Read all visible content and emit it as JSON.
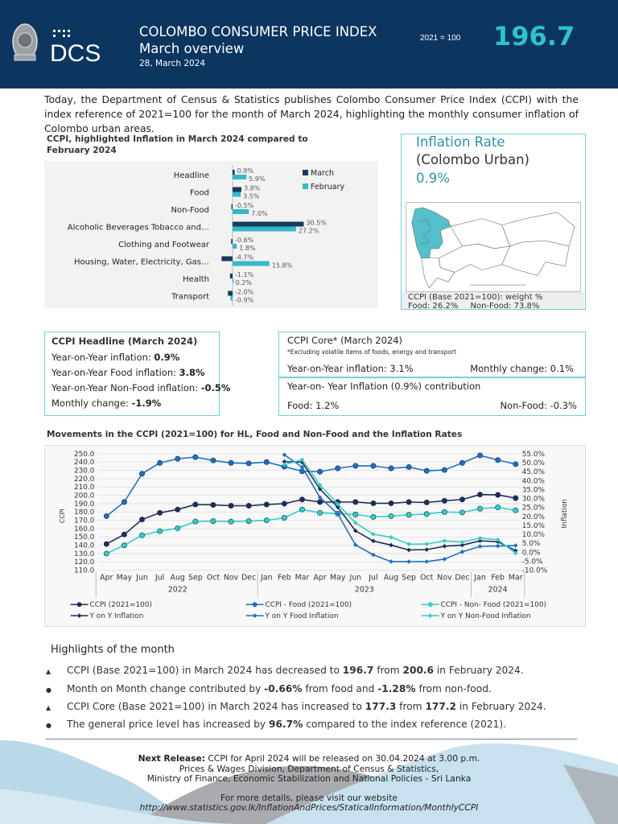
{
  "header": {
    "logo_text": "DCS",
    "title": "COLOMBO CONSUMER PRICE INDEX",
    "subtitle": "March overview",
    "date": "28, March 2024",
    "base": "2021 = 100",
    "index_value": "196.7"
  },
  "intro": "Today, the Department of Census & Statistics publishes Colombo Consumer Price Index (CCPI) with the index reference of 2021=100 for the month of March 2024, highlighting the monthly consumer inflation of Colombo urban areas.",
  "colors": {
    "navy": "#0c3560",
    "teal": "#2ec3c9",
    "march_bar": "#173b5e",
    "february_bar": "#35b8c8",
    "ccpi": "#1f2d5a",
    "food": "#1f6fc0",
    "nonfood": "#2fcfc8"
  },
  "bar_chart": {
    "title": "CCPI, highlighted Inflation in March 2024 compared to February 2024",
    "type": "bar",
    "categories": [
      "Headline",
      "Food",
      "Non-Food",
      "Alcoholic Beverages Tobacco and…",
      "Clothing and Footwear",
      "Housing, Water, Electricity, Gas…",
      "Health",
      "Transport"
    ],
    "series": [
      {
        "name": "March",
        "values": [
          0.9,
          3.8,
          -0.5,
          30.5,
          -0.6,
          -4.7,
          -1.1,
          -2.0
        ],
        "labels": [
          "0.9%",
          "3.8%",
          "-0.5%",
          "30.5%",
          "-0.6%",
          "-4.7%",
          "-1.1%",
          "-2.0%"
        ]
      },
      {
        "name": "February",
        "values": [
          5.9,
          3.5,
          7.0,
          27.2,
          1.8,
          15.8,
          0.2,
          -0.9
        ],
        "labels": [
          "5.9%",
          "3.5%",
          "7.0%",
          "27.2%",
          "1.8%",
          "15.8%",
          "0.2%",
          "-0.9%"
        ]
      }
    ],
    "legend": "top-right"
  },
  "inflation_box": {
    "title": "Inflation Rate",
    "subtitle": "(Colombo Urban)",
    "value": "0.9%",
    "weight_caption": "CCPI (Base 2021=100): weight %",
    "food_label": "Food:",
    "food_value": "26.2%",
    "nonfood_label": "Non-Food:",
    "nonfood_value": "73.8%"
  },
  "headline_box": {
    "title": "CCPI Headline (March 2024)",
    "lines": [
      {
        "label": "Year-on-Year inflation: ",
        "value": "0.9%"
      },
      {
        "label": "Year-on-Year Food inflation: ",
        "value": "3.8%"
      },
      {
        "label": "Year-on-Year Non-Food inflation: ",
        "value": "-0.5%"
      },
      {
        "label": "Monthly change: ",
        "value": "-1.9%"
      }
    ]
  },
  "core_box": {
    "title": "CCPI Core* (March 2024)",
    "note": "*Excluding volatile items of foods, energy and transport",
    "yoy": "Year-on-Year inflation: 3.1%",
    "monthly": "Monthly change: 0.1%",
    "contribution_title": "Year-on- Year Inflation (0.9%) contribution",
    "food": "Food: 1.2%",
    "nonfood": "Non-Food: -0.3%"
  },
  "chart_data": {
    "type": "line",
    "title": "Movements in the CCPI (2021=100) for HL, Food and Non-Food and the Inflation Rates",
    "ylabel": "CCPI",
    "y2label": "Inflation",
    "ylim": [
      110,
      250
    ],
    "y2lim": [
      -10,
      55
    ],
    "yticks": [
      "250.0",
      "240.0",
      "230.0",
      "220.0",
      "210.0",
      "200.0",
      "190.0",
      "180.0",
      "170.0",
      "160.0",
      "150.0",
      "140.0",
      "130.0",
      "120.0",
      "110.0"
    ],
    "y2ticks": [
      "55.0%",
      "50.0%",
      "45.0%",
      "40.0%",
      "35.0%",
      "30.0%",
      "25.0%",
      "20.0%",
      "15.0%",
      "10.0%",
      "5.0%",
      "0.0%",
      "-5.0%",
      "-10.0%"
    ],
    "months": [
      "Apr",
      "May",
      "Jun",
      "Jul",
      "Aug",
      "Sep",
      "Oct",
      "Nov",
      "Dec",
      "Jan",
      "Feb",
      "Mar",
      "Apr",
      "May",
      "Jun",
      "Jul",
      "Aug",
      "Sep",
      "Oct",
      "Nov",
      "Dec",
      "Jan",
      "Feb",
      "Mar"
    ],
    "years": [
      {
        "label": "2022",
        "span": 9
      },
      {
        "label": "2023",
        "span": 12
      },
      {
        "label": "2024",
        "span": 3
      }
    ],
    "grid": true,
    "legend": "bottom",
    "series": [
      {
        "name": "CCPI (2021=100)",
        "axis": "left",
        "marker": "circle",
        "color": "#1f2d5a",
        "values": [
          141.5,
          153,
          171,
          179,
          183,
          189,
          188.5,
          187.5,
          187.5,
          189,
          190,
          195,
          192,
          192,
          192,
          190.5,
          190.5,
          192,
          191.5,
          193.5,
          195,
          201,
          200.6,
          196.7
        ]
      },
      {
        "name": "CCPI - Food (2021=100)",
        "axis": "left",
        "marker": "circle",
        "color": "#1f6fc0",
        "values": [
          175,
          192,
          226,
          239,
          244,
          246,
          242,
          239,
          238.5,
          240,
          234.5,
          229,
          228.5,
          232.5,
          235.5,
          235.5,
          232.5,
          234,
          229.5,
          230.5,
          239,
          248,
          242.5,
          237.5
        ]
      },
      {
        "name": "CCPI - Non- Food (2021=100)",
        "axis": "left",
        "marker": "circle",
        "color": "#2fcfc8",
        "values": [
          130,
          140,
          152,
          157,
          160.5,
          168.5,
          169,
          168.5,
          169,
          170,
          173,
          183,
          179,
          178,
          177,
          174,
          175,
          176.5,
          177.5,
          180,
          179.5,
          184,
          185.5,
          182
        ]
      },
      {
        "name": "Y on Y  Inflation",
        "axis": "right",
        "marker": "diamond",
        "color": "#1f2d5a",
        "values": [
          null,
          null,
          null,
          null,
          null,
          null,
          null,
          null,
          null,
          null,
          50.6,
          50.3,
          35.3,
          25.2,
          12.0,
          6.3,
          4.0,
          1.3,
          1.5,
          3.4,
          4.0,
          6.4,
          5.9,
          0.9
        ]
      },
      {
        "name": "Y on Y  Food Inflation",
        "axis": "right",
        "marker": "diamond",
        "color": "#1f6fc0",
        "values": [
          null,
          null,
          null,
          null,
          null,
          null,
          null,
          null,
          null,
          null,
          54.4,
          47.6,
          30.6,
          21.5,
          4.1,
          -1.4,
          -5.2,
          -5.2,
          -5.2,
          -3.8,
          0.3,
          3.3,
          3.5,
          3.8
        ]
      },
      {
        "name": "Y on Y  Non-Food Inflation",
        "axis": "right",
        "marker": "diamond",
        "color": "#2fcfc8",
        "values": [
          null,
          null,
          null,
          null,
          null,
          null,
          null,
          null,
          null,
          null,
          48.9,
          51.7,
          37.6,
          27.0,
          16.4,
          10.1,
          8.4,
          4.6,
          4.6,
          6.4,
          5.7,
          7.9,
          7.0,
          -0.5
        ]
      }
    ]
  },
  "highlights": {
    "title": "Highlights of the month",
    "items": [
      {
        "icon": "triangle-bullet-icon",
        "marker": "▲",
        "pre": "CCPI (Base 2021=100) in March 2024 has decreased to ",
        "b1": "196.7",
        "mid": " from ",
        "b2": "200.6",
        "post": " in February 2024."
      },
      {
        "icon": "dot-bullet-icon",
        "marker": "●",
        "pre": "Month on Month change contributed by ",
        "b1": "-0.66%",
        "mid": " from food and ",
        "b2": "-1.28%",
        "post": " from non-food."
      },
      {
        "icon": "triangle-bullet-icon",
        "marker": "▲",
        "pre": "CCPI Core (Base 2021=100) in March 2024 has increased to ",
        "b1": "177.3",
        "mid": " from ",
        "b2": "177.2",
        "post": " in February 2024."
      },
      {
        "icon": "dot-bullet-icon",
        "marker": "●",
        "pre": "The general price level has increased by ",
        "b1": "96.7%",
        "mid": " compared to the index reference (2021).",
        "b2": "",
        "post": ""
      }
    ]
  },
  "footer": {
    "next_release_label": "Next Release:",
    "next_release": " CCPI for April 2024 will be released on 30.04.2024 at 3.00 p.m.",
    "division": "Prices & Wages Division, Department of Census & Statistics,",
    "ministry": "Ministry of Finance, Economic Stabilization and National Policies - Sri Lanka",
    "more": "For more details, please visit our website",
    "url": "http://www.statistics.gov.lk/InflationAndPrices/StaticalInformation/MonthlyCCPI"
  }
}
